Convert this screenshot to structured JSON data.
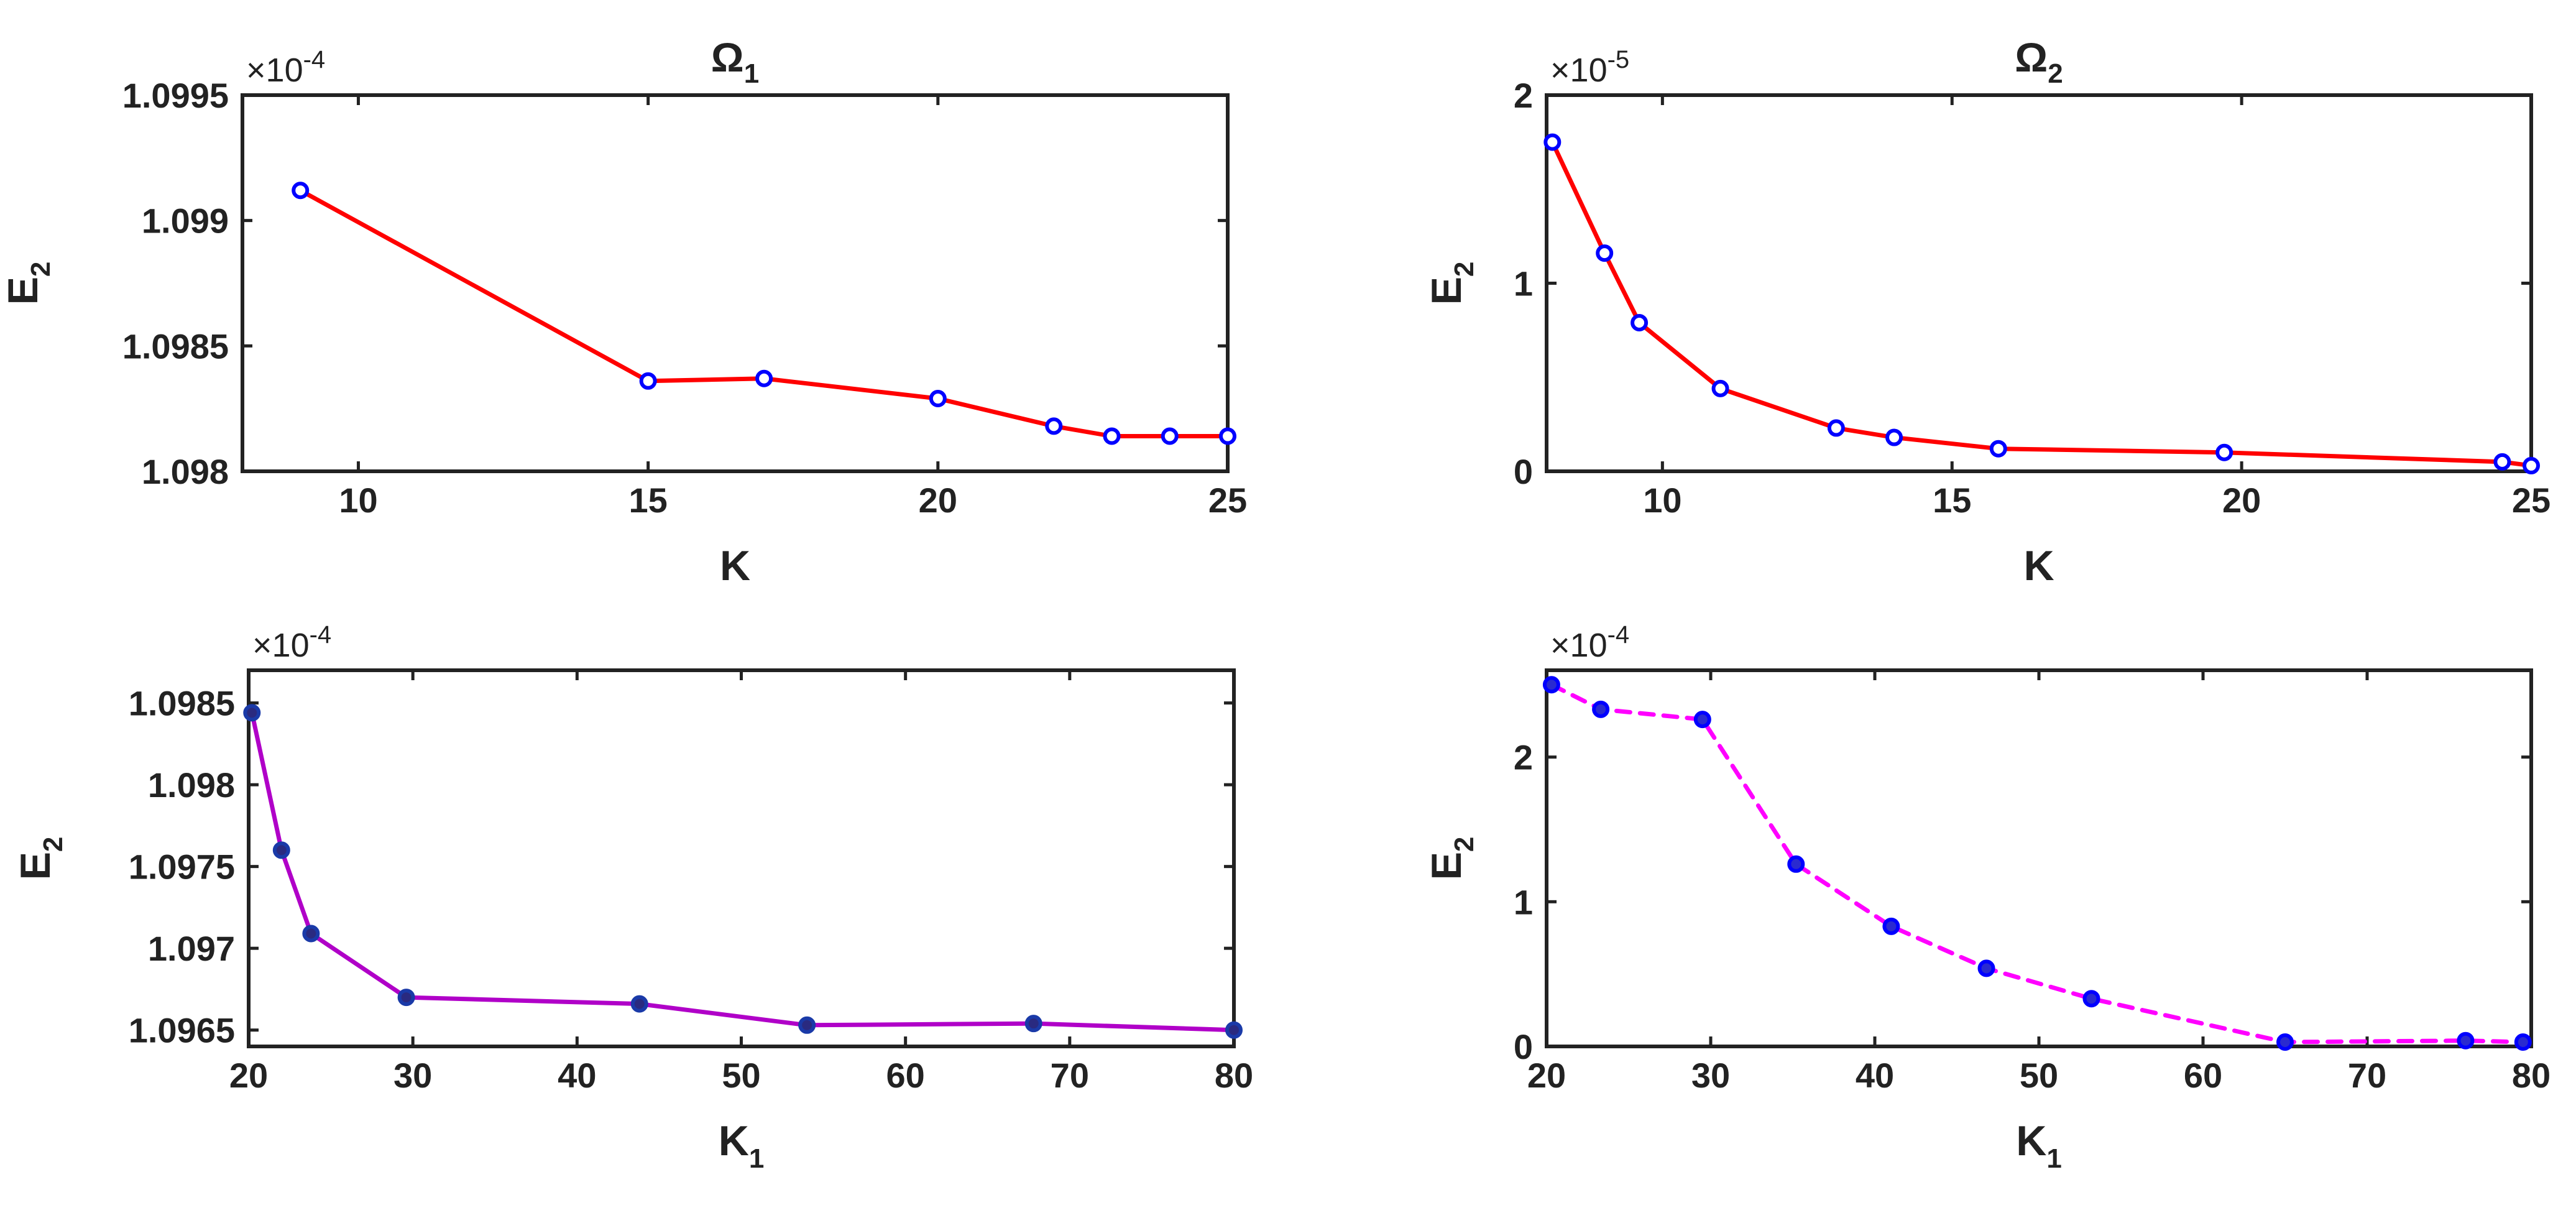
{
  "chart_data": [
    {
      "type": "line",
      "title": "Ω",
      "title_sub": "1",
      "xlabel": "K",
      "xlabel_sub": "",
      "ylabel": "E",
      "ylabel_sub": "2",
      "multiplier": "×10",
      "multiplier_exp": "-4",
      "xlim": [
        8,
        25
      ],
      "ylim": [
        1.098,
        1.0995
      ],
      "xticks": [
        10,
        15,
        20,
        25
      ],
      "xticklabels": [
        "10",
        "15",
        "20",
        "25"
      ],
      "yticks": [
        1.098,
        1.0985,
        1.099,
        1.0995
      ],
      "yticklabels": [
        "1.098",
        "1.0985",
        "1.099",
        "1.0995"
      ],
      "grid": false,
      "series": [
        {
          "name": "E2",
          "line_color": "#ff0000",
          "line_style": "solid",
          "marker": "open-circle",
          "marker_color": "#0000ff",
          "marker_face": "#ffffff",
          "x": [
            9,
            15,
            17,
            20,
            22,
            23,
            24,
            25
          ],
          "y": [
            1.09912,
            1.09836,
            1.09837,
            1.09829,
            1.09818,
            1.09814,
            1.09814,
            1.09814
          ]
        }
      ]
    },
    {
      "type": "line",
      "title": "Ω",
      "title_sub": "2",
      "xlabel": "K",
      "xlabel_sub": "",
      "ylabel": "E",
      "ylabel_sub": "2",
      "multiplier": "×10",
      "multiplier_exp": "-5",
      "xlim": [
        8,
        25
      ],
      "ylim": [
        0,
        2
      ],
      "xticks": [
        10,
        15,
        20,
        25
      ],
      "xticklabels": [
        "10",
        "15",
        "20",
        "25"
      ],
      "yticks": [
        0,
        1,
        2
      ],
      "yticklabels": [
        "0",
        "1",
        "2"
      ],
      "grid": false,
      "series": [
        {
          "name": "E2",
          "line_color": "#ff0000",
          "line_style": "solid",
          "marker": "open-circle",
          "marker_color": "#0000ff",
          "marker_face": "#ffffff",
          "x": [
            8.1,
            9,
            9.6,
            11,
            13,
            14,
            15.8,
            19.7,
            24.5,
            25
          ],
          "y": [
            1.75,
            1.16,
            0.79,
            0.44,
            0.23,
            0.18,
            0.12,
            0.1,
            0.05,
            0.03
          ]
        }
      ]
    },
    {
      "type": "line",
      "title": "",
      "title_sub": "",
      "xlabel": "K",
      "xlabel_sub": "1",
      "ylabel": "E",
      "ylabel_sub": "2",
      "multiplier": "×10",
      "multiplier_exp": "-4",
      "xlim": [
        20,
        80
      ],
      "ylim": [
        1.0964,
        1.0987
      ],
      "xticks": [
        20,
        30,
        40,
        50,
        60,
        70,
        80
      ],
      "xticklabels": [
        "20",
        "30",
        "40",
        "50",
        "60",
        "70",
        "80"
      ],
      "yticks": [
        1.0965,
        1.097,
        1.0975,
        1.098,
        1.0985
      ],
      "yticklabels": [
        "1.0965",
        "1.097",
        "1.0975",
        "1.098",
        "1.0985"
      ],
      "grid": false,
      "series": [
        {
          "name": "E2",
          "line_color": "#b000c8",
          "line_style": "solid",
          "marker": "filled-circle",
          "marker_color": "#1a3aa8",
          "marker_face": "#2a2a80",
          "x": [
            20.2,
            22,
            23.8,
            29.6,
            43.8,
            54,
            67.8,
            80
          ],
          "y": [
            1.09844,
            1.0976,
            1.09709,
            1.0967,
            1.09666,
            1.09653,
            1.09654,
            1.0965
          ]
        }
      ]
    },
    {
      "type": "line",
      "title": "",
      "title_sub": "",
      "xlabel": "K",
      "xlabel_sub": "1",
      "ylabel": "E",
      "ylabel_sub": "2",
      "multiplier": "×10",
      "multiplier_exp": "-4",
      "xlim": [
        20,
        80
      ],
      "ylim": [
        0,
        2.6
      ],
      "xticks": [
        20,
        30,
        40,
        50,
        60,
        70,
        80
      ],
      "xticklabels": [
        "20",
        "30",
        "40",
        "50",
        "60",
        "70",
        "80"
      ],
      "yticks": [
        0,
        1,
        2
      ],
      "yticklabels": [
        "0",
        "1",
        "2"
      ],
      "grid": false,
      "series": [
        {
          "name": "E2",
          "line_color": "#ff00ff",
          "line_style": "dashed",
          "marker": "filled-circle",
          "marker_color": "#0000ff",
          "marker_face": "#2a2ad0",
          "x": [
            20.3,
            23.3,
            29.5,
            35.2,
            41,
            46.8,
            53.2,
            65,
            76,
            79.5
          ],
          "y": [
            2.5,
            2.33,
            2.26,
            1.26,
            0.83,
            0.54,
            0.33,
            0.03,
            0.04,
            0.03
          ]
        }
      ]
    }
  ]
}
